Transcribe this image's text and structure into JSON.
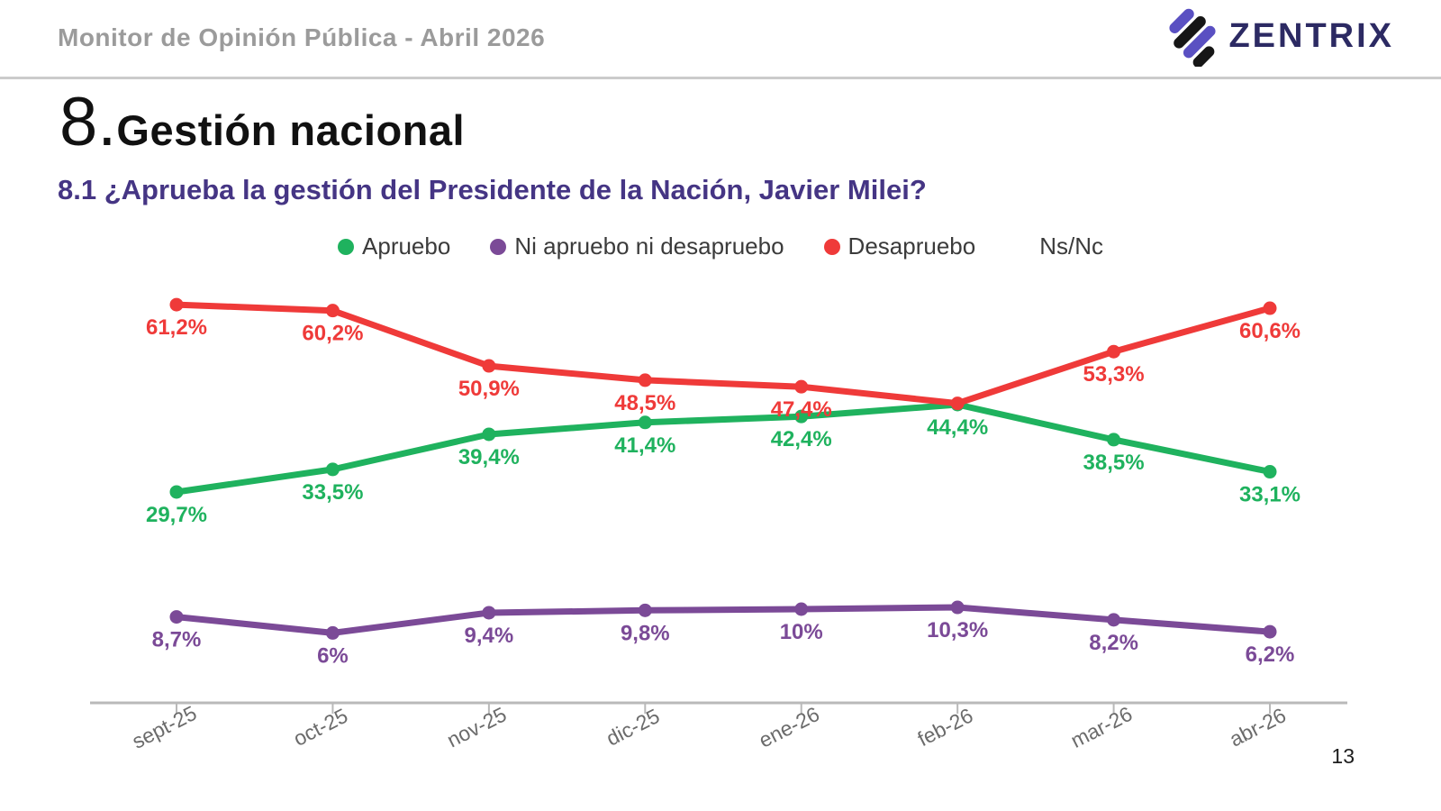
{
  "header": {
    "title": "Monitor de Opinión Pública - Abril 2026",
    "logo_text": "ZENTRIX",
    "logo_colors": {
      "purple": "#5a50c2",
      "black": "#161616",
      "text": "#2c2a63"
    }
  },
  "slide": {
    "section_number": "8.",
    "section_title": "Gestión nacional",
    "question": "8.1 ¿Aprueba la gestión del Presidente de la Nación, Javier Milei?",
    "page_number": "13"
  },
  "chart_data": {
    "type": "line",
    "title": "",
    "xlabel": "",
    "ylabel": "",
    "ylim": [
      0,
      67
    ],
    "grid": false,
    "legend_position": "top",
    "axis_color": "#b9b9b9",
    "xlabel_color": "#6b6b6b",
    "categories": [
      "sept-25",
      "oct-25",
      "nov-25",
      "dic-25",
      "ene-26",
      "feb-26",
      "mar-26",
      "abr-26"
    ],
    "series": [
      {
        "name": "Apruebo",
        "color": "#1fb25e",
        "values": [
          29.7,
          33.5,
          39.4,
          41.4,
          42.4,
          44.4,
          38.5,
          33.1
        ],
        "labels": [
          "29,7%",
          "33,5%",
          "39,4%",
          "41,4%",
          "42,4%",
          "44,4%",
          "38,5%",
          "33,1%"
        ]
      },
      {
        "name": "Ni apruebo ni desapruebo",
        "color": "#7b4a97",
        "values": [
          8.7,
          6,
          9.4,
          9.8,
          10,
          10.3,
          8.2,
          6.2
        ],
        "labels": [
          "8,7%",
          "6%",
          "9,4%",
          "9,8%",
          "10%",
          "10,3%",
          "8,2%",
          "6,2%"
        ]
      },
      {
        "name": "Desapruebo",
        "color": "#ef3a39",
        "values": [
          61.2,
          60.2,
          50.9,
          48.5,
          47.4,
          44.6,
          53.3,
          60.6
        ],
        "labels": [
          "61,2%",
          "60,2%",
          "50,9%",
          "48,5%",
          "47,4%",
          "",
          "53,3%",
          "60,6%"
        ]
      },
      {
        "name": "Ns/Nc",
        "color": "none",
        "values": [],
        "labels": []
      }
    ]
  }
}
